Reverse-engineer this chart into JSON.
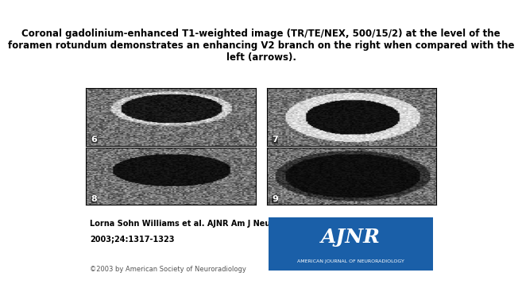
{
  "title": "Coronal gadolinium-enhanced T1-weighted image (TR/TE/NEX, 500/15/2) at the level of the\nforamen rotundum demonstrates an enhancing V2 branch on the right when compared with the\nleft (arrows).",
  "citation_line1": "Lorna Sohn Williams et al. AJNR Am J Neuroradiol",
  "citation_line2": "2003;24:1317-1323",
  "copyright": "©2003 by American Society of Neuroradiology",
  "ainr_box_color": "#1a5fa8",
  "ainr_text": "AJNR",
  "ainr_subtext": "AMERICAN JOURNAL OF NEURORADIOLOGY",
  "bg_color": "#ffffff",
  "panel_labels": [
    "6",
    "7",
    "8",
    "9"
  ],
  "title_fontsize": 8.5,
  "citation_fontsize": 7.0,
  "copyright_fontsize": 6.0,
  "label_fontsize": 8.0,
  "ainr_fontsize": 18,
  "ainr_sub_fontsize": 4.5
}
